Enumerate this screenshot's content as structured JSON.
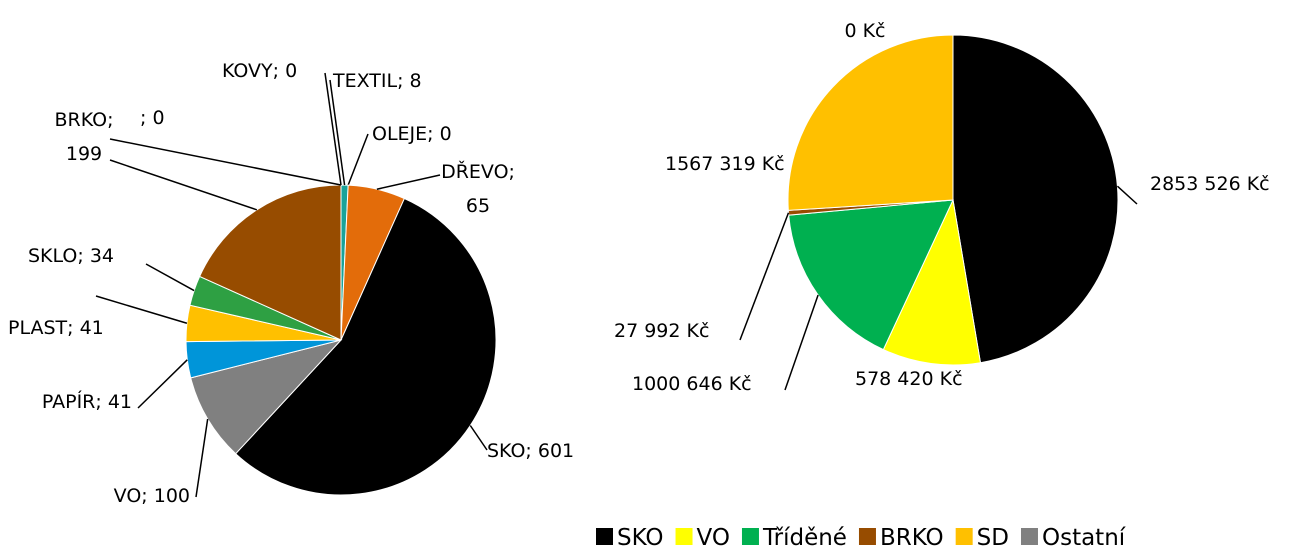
{
  "chart_data": [
    {
      "type": "pie",
      "categories": [
        "TEXTIL",
        "OLEJE",
        "DŘEVO",
        "SKO",
        "VO",
        "PAPÍR",
        "PLAST",
        "SKLO",
        "BRKO",
        null,
        "KOVY"
      ],
      "values": [
        8,
        0,
        65,
        601,
        100,
        41,
        41,
        34,
        199,
        0,
        0
      ],
      "value_labels": [
        "TEXTIL; 8",
        "OLEJE; 0",
        "DŘEVO;\n65",
        "SKO; 601",
        "VO; 100",
        "PAPÍR; 41",
        "PLAST; 41",
        "SKLO; 34",
        "BRKO;\n199",
        "; 0",
        "KOVY; 0"
      ],
      "colors": [
        "#1aa39a",
        "#7030a0",
        "#e36c0a",
        "#000000",
        "#808080",
        "#0095d9",
        "#ffc000",
        "#2ea043",
        "#974c00",
        "#404040",
        "#c0c0c0"
      ]
    },
    {
      "type": "pie",
      "series": [
        {
          "name": "SKO",
          "color": "#000000",
          "values": [
            2853526
          ],
          "value_labels": [
            "2853 526 Kč"
          ]
        },
        {
          "name": "VO",
          "color": "#ffff00",
          "values": [
            578420
          ],
          "value_labels": [
            "578 420 Kč"
          ]
        },
        {
          "name": "Tříděné",
          "color": "#00b050",
          "values": [
            1000646
          ],
          "value_labels": [
            "1000 646 Kč"
          ]
        },
        {
          "name": "BRKO",
          "color": "#974c00",
          "values": [
            27992
          ],
          "value_labels": [
            "27 992 Kč"
          ]
        },
        {
          "name": "SD",
          "color": "#ffc000",
          "values": [
            1567319
          ],
          "value_labels": [
            "1567 319 Kč"
          ]
        },
        {
          "name": "Ostatní",
          "color": "#808080",
          "values": [
            0
          ],
          "value_labels": [
            "0 Kč"
          ]
        }
      ],
      "legend": "bottom"
    }
  ]
}
